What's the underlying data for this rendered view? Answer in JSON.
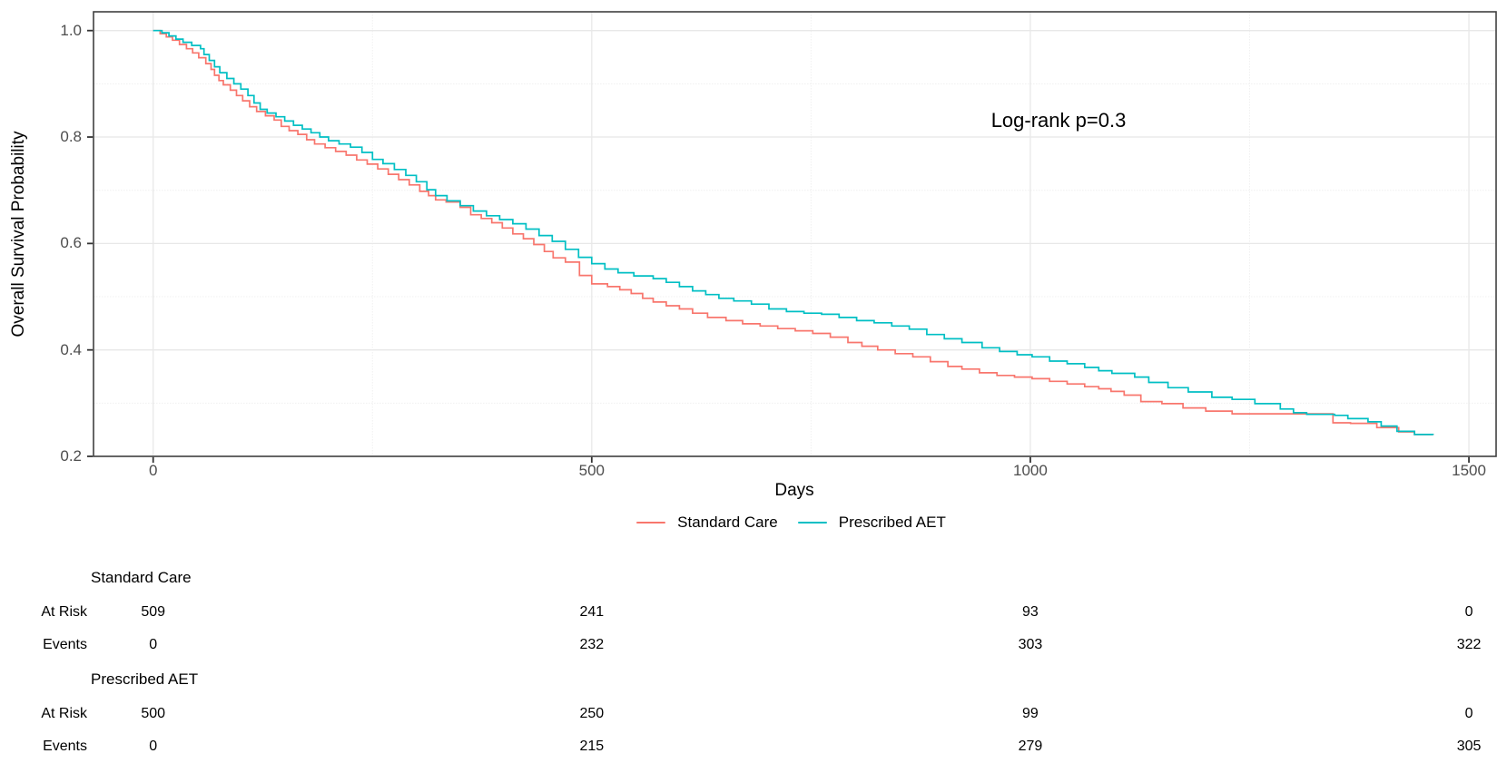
{
  "figure": {
    "y_axis_title": "Overall Survival Probability",
    "x_axis_title": "Days",
    "annotation_text": "Log-rank p=0.3"
  },
  "legend": {
    "items": [
      {
        "label": "Standard Care",
        "color": "#F8766D"
      },
      {
        "label": "Prescribed AET",
        "color": "#00BFC4"
      }
    ]
  },
  "chart_data": {
    "type": "line",
    "subtype": "kaplan-meier-step",
    "title": "",
    "xlabel": "Days",
    "ylabel": "Overall Survival Probability",
    "annotation": {
      "text": "Log-rank p=0.3",
      "x_day": 1030,
      "y_prob": 0.83
    },
    "xlim": [
      -68,
      1531
    ],
    "ylim": [
      0.2,
      1.0
    ],
    "xticks": [
      0,
      500,
      1000,
      1500
    ],
    "yticks": [
      0.2,
      0.4,
      0.6,
      0.8,
      1.0
    ],
    "minor_xticks": [
      250,
      750,
      1250
    ],
    "minor_yticks": [
      0.3,
      0.5,
      0.7,
      0.9
    ],
    "grid": true,
    "legend_position": "bottom",
    "series": [
      {
        "name": "Standard Care",
        "color": "#F8766D",
        "points": [
          [
            0,
            1.0
          ],
          [
            8,
            0.994
          ],
          [
            15,
            0.988
          ],
          [
            22,
            0.982
          ],
          [
            30,
            0.974
          ],
          [
            38,
            0.966
          ],
          [
            45,
            0.958
          ],
          [
            52,
            0.949
          ],
          [
            60,
            0.938
          ],
          [
            66,
            0.927
          ],
          [
            70,
            0.916
          ],
          [
            75,
            0.906
          ],
          [
            80,
            0.898
          ],
          [
            88,
            0.888
          ],
          [
            95,
            0.878
          ],
          [
            102,
            0.868
          ],
          [
            110,
            0.857
          ],
          [
            118,
            0.848
          ],
          [
            128,
            0.84
          ],
          [
            138,
            0.832
          ],
          [
            146,
            0.82
          ],
          [
            155,
            0.812
          ],
          [
            165,
            0.805
          ],
          [
            175,
            0.795
          ],
          [
            184,
            0.787
          ],
          [
            196,
            0.78
          ],
          [
            208,
            0.773
          ],
          [
            220,
            0.766
          ],
          [
            232,
            0.757
          ],
          [
            244,
            0.749
          ],
          [
            256,
            0.74
          ],
          [
            268,
            0.73
          ],
          [
            280,
            0.72
          ],
          [
            292,
            0.71
          ],
          [
            304,
            0.698
          ],
          [
            314,
            0.69
          ],
          [
            322,
            0.682
          ],
          [
            334,
            0.678
          ],
          [
            350,
            0.668
          ],
          [
            362,
            0.654
          ],
          [
            374,
            0.647
          ],
          [
            386,
            0.639
          ],
          [
            398,
            0.629
          ],
          [
            410,
            0.618
          ],
          [
            422,
            0.609
          ],
          [
            434,
            0.598
          ],
          [
            446,
            0.585
          ],
          [
            456,
            0.573
          ],
          [
            470,
            0.565
          ],
          [
            486,
            0.54
          ],
          [
            500,
            0.524
          ],
          [
            518,
            0.519
          ],
          [
            532,
            0.513
          ],
          [
            545,
            0.506
          ],
          [
            558,
            0.497
          ],
          [
            570,
            0.49
          ],
          [
            585,
            0.483
          ],
          [
            600,
            0.477
          ],
          [
            615,
            0.469
          ],
          [
            632,
            0.461
          ],
          [
            653,
            0.455
          ],
          [
            672,
            0.449
          ],
          [
            692,
            0.445
          ],
          [
            712,
            0.44
          ],
          [
            732,
            0.436
          ],
          [
            752,
            0.431
          ],
          [
            772,
            0.424
          ],
          [
            792,
            0.414
          ],
          [
            808,
            0.407
          ],
          [
            826,
            0.4
          ],
          [
            846,
            0.393
          ],
          [
            866,
            0.387
          ],
          [
            886,
            0.378
          ],
          [
            906,
            0.369
          ],
          [
            922,
            0.364
          ],
          [
            942,
            0.357
          ],
          [
            962,
            0.352
          ],
          [
            982,
            0.349
          ],
          [
            1002,
            0.346
          ],
          [
            1022,
            0.341
          ],
          [
            1042,
            0.336
          ],
          [
            1062,
            0.331
          ],
          [
            1078,
            0.327
          ],
          [
            1092,
            0.322
          ],
          [
            1107,
            0.315
          ],
          [
            1126,
            0.303
          ],
          [
            1150,
            0.299
          ],
          [
            1174,
            0.291
          ],
          [
            1200,
            0.285
          ],
          [
            1230,
            0.28
          ],
          [
            1345,
            0.263
          ],
          [
            1365,
            0.262
          ],
          [
            1395,
            0.254
          ],
          [
            1420,
            0.246
          ],
          [
            1438,
            0.241
          ],
          [
            1459,
            0.24
          ]
        ]
      },
      {
        "name": "Prescribed AET",
        "color": "#00BFC4",
        "points": [
          [
            0,
            1.0
          ],
          [
            10,
            0.996
          ],
          [
            18,
            0.99
          ],
          [
            26,
            0.984
          ],
          [
            34,
            0.978
          ],
          [
            44,
            0.972
          ],
          [
            54,
            0.966
          ],
          [
            58,
            0.955
          ],
          [
            64,
            0.944
          ],
          [
            70,
            0.932
          ],
          [
            76,
            0.921
          ],
          [
            84,
            0.91
          ],
          [
            92,
            0.9
          ],
          [
            100,
            0.89
          ],
          [
            108,
            0.878
          ],
          [
            115,
            0.864
          ],
          [
            122,
            0.852
          ],
          [
            130,
            0.845
          ],
          [
            140,
            0.838
          ],
          [
            150,
            0.83
          ],
          [
            160,
            0.822
          ],
          [
            170,
            0.815
          ],
          [
            180,
            0.808
          ],
          [
            190,
            0.8
          ],
          [
            200,
            0.793
          ],
          [
            212,
            0.787
          ],
          [
            225,
            0.781
          ],
          [
            238,
            0.771
          ],
          [
            250,
            0.758
          ],
          [
            262,
            0.75
          ],
          [
            275,
            0.739
          ],
          [
            288,
            0.728
          ],
          [
            300,
            0.716
          ],
          [
            312,
            0.701
          ],
          [
            322,
            0.69
          ],
          [
            335,
            0.68
          ],
          [
            350,
            0.671
          ],
          [
            365,
            0.661
          ],
          [
            380,
            0.652
          ],
          [
            395,
            0.645
          ],
          [
            410,
            0.637
          ],
          [
            425,
            0.627
          ],
          [
            440,
            0.615
          ],
          [
            455,
            0.604
          ],
          [
            470,
            0.589
          ],
          [
            485,
            0.574
          ],
          [
            500,
            0.562
          ],
          [
            515,
            0.552
          ],
          [
            530,
            0.545
          ],
          [
            548,
            0.539
          ],
          [
            570,
            0.534
          ],
          [
            585,
            0.527
          ],
          [
            600,
            0.519
          ],
          [
            615,
            0.511
          ],
          [
            630,
            0.504
          ],
          [
            645,
            0.497
          ],
          [
            662,
            0.492
          ],
          [
            682,
            0.486
          ],
          [
            702,
            0.477
          ],
          [
            722,
            0.472
          ],
          [
            742,
            0.469
          ],
          [
            762,
            0.467
          ],
          [
            782,
            0.461
          ],
          [
            802,
            0.455
          ],
          [
            822,
            0.451
          ],
          [
            842,
            0.445
          ],
          [
            862,
            0.439
          ],
          [
            882,
            0.429
          ],
          [
            902,
            0.421
          ],
          [
            922,
            0.414
          ],
          [
            945,
            0.404
          ],
          [
            965,
            0.397
          ],
          [
            985,
            0.391
          ],
          [
            1002,
            0.387
          ],
          [
            1022,
            0.379
          ],
          [
            1042,
            0.374
          ],
          [
            1062,
            0.367
          ],
          [
            1078,
            0.361
          ],
          [
            1093,
            0.356
          ],
          [
            1119,
            0.349
          ],
          [
            1135,
            0.339
          ],
          [
            1157,
            0.329
          ],
          [
            1180,
            0.321
          ],
          [
            1207,
            0.311
          ],
          [
            1230,
            0.307
          ],
          [
            1256,
            0.299
          ],
          [
            1285,
            0.289
          ],
          [
            1300,
            0.282
          ],
          [
            1315,
            0.279
          ],
          [
            1347,
            0.277
          ],
          [
            1362,
            0.271
          ],
          [
            1385,
            0.265
          ],
          [
            1400,
            0.257
          ],
          [
            1418,
            0.247
          ],
          [
            1438,
            0.241
          ],
          [
            1459,
            0.24
          ]
        ]
      }
    ]
  },
  "risk_table": {
    "times": [
      0,
      500,
      1000,
      1500
    ],
    "row_labels": {
      "at_risk": "At Risk",
      "events": "Events"
    },
    "groups": [
      {
        "name": "Standard Care",
        "at_risk": [
          509,
          241,
          93,
          0
        ],
        "events": [
          0,
          232,
          303,
          322
        ]
      },
      {
        "name": "Prescribed AET",
        "at_risk": [
          500,
          250,
          99,
          0
        ],
        "events": [
          0,
          215,
          279,
          305
        ]
      }
    ]
  }
}
